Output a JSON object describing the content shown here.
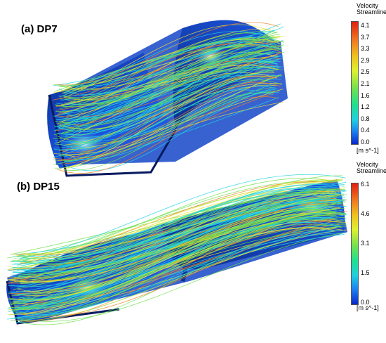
{
  "panels": [
    {
      "label": "(a) DP7",
      "legend": {
        "title_line1": "Velocity",
        "title_line2": "Streamline",
        "ticks": [
          "4.1",
          "3.7",
          "3.3",
          "2.9",
          "2.5",
          "2.1",
          "1.6",
          "1.2",
          "0.8",
          "0.4",
          "0.0"
        ],
        "unit": "[m s^-1]"
      }
    },
    {
      "label": "(b) DP15",
      "legend": {
        "title_line1": "Velocity",
        "title_line2": "Streamline",
        "ticks": [
          "6.1",
          "4.6",
          "3.1",
          "1.5",
          "0.0"
        ],
        "unit": "[m s^-1]"
      }
    }
  ],
  "colors": {
    "surface_dark": "#0a2a8a",
    "surface_mid": "#1a4fd8",
    "surface_light": "#3f7ff0",
    "streamline_cold": "#22d3e0",
    "streamline_mid": "#6fe04a",
    "streamline_warm": "#f0e030",
    "streamline_hot": "#f08020"
  }
}
